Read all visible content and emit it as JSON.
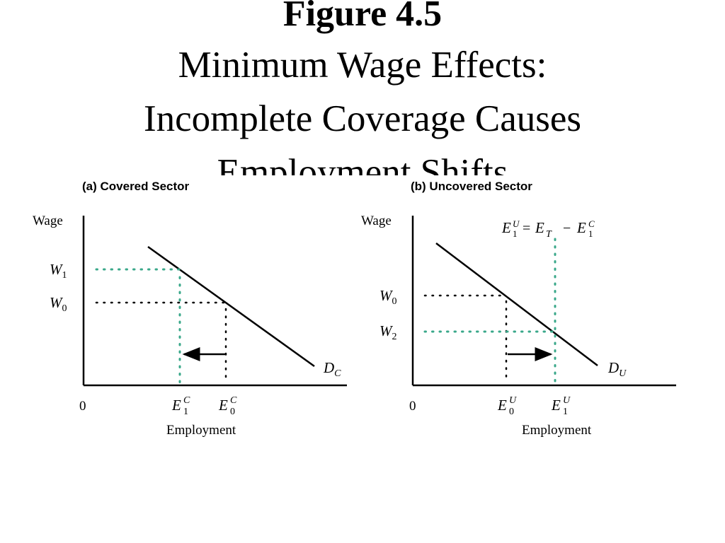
{
  "title": {
    "figure_number": "Figure 4.5",
    "line1": "Minimum Wage Effects:",
    "line2": "Incomplete Coverage Causes",
    "line3": "Employment Shifts"
  },
  "panel_a": {
    "title": "(a) Covered Sector",
    "y_axis_label": "Wage",
    "x_axis_label": "Employment",
    "origin": "0",
    "w1": {
      "sym": "W",
      "sub": "1"
    },
    "w0": {
      "sym": "W",
      "sub": "0"
    },
    "e1": {
      "sym": "E",
      "sub": "1",
      "sup": "C"
    },
    "e0": {
      "sym": "E",
      "sub": "0",
      "sup": "C"
    },
    "demand": {
      "sym": "D",
      "sub": "C"
    }
  },
  "panel_b": {
    "title": "(b) Uncovered Sector",
    "y_axis_label": "Wage",
    "x_axis_label": "Employment",
    "origin": "0",
    "w0": {
      "sym": "W",
      "sub": "0"
    },
    "w2": {
      "sym": "W",
      "sub": "2"
    },
    "e0": {
      "sym": "E",
      "sub": "0",
      "sup": "U"
    },
    "e1": {
      "sym": "E",
      "sub": "1",
      "sup": "U"
    },
    "demand": {
      "sym": "D",
      "sub": "U"
    },
    "equation": {
      "lhs_sym": "E",
      "lhs_sub": "1",
      "lhs_sup": "U",
      "equals": "=",
      "t_sym": "E",
      "t_sub": "T",
      "minus": "−",
      "rhs_sym": "E",
      "rhs_sub": "1",
      "rhs_sup": "C"
    }
  },
  "colors": {
    "line": "#000000",
    "dotted_black": "#000000",
    "dotted_teal": "#3aa88a"
  }
}
